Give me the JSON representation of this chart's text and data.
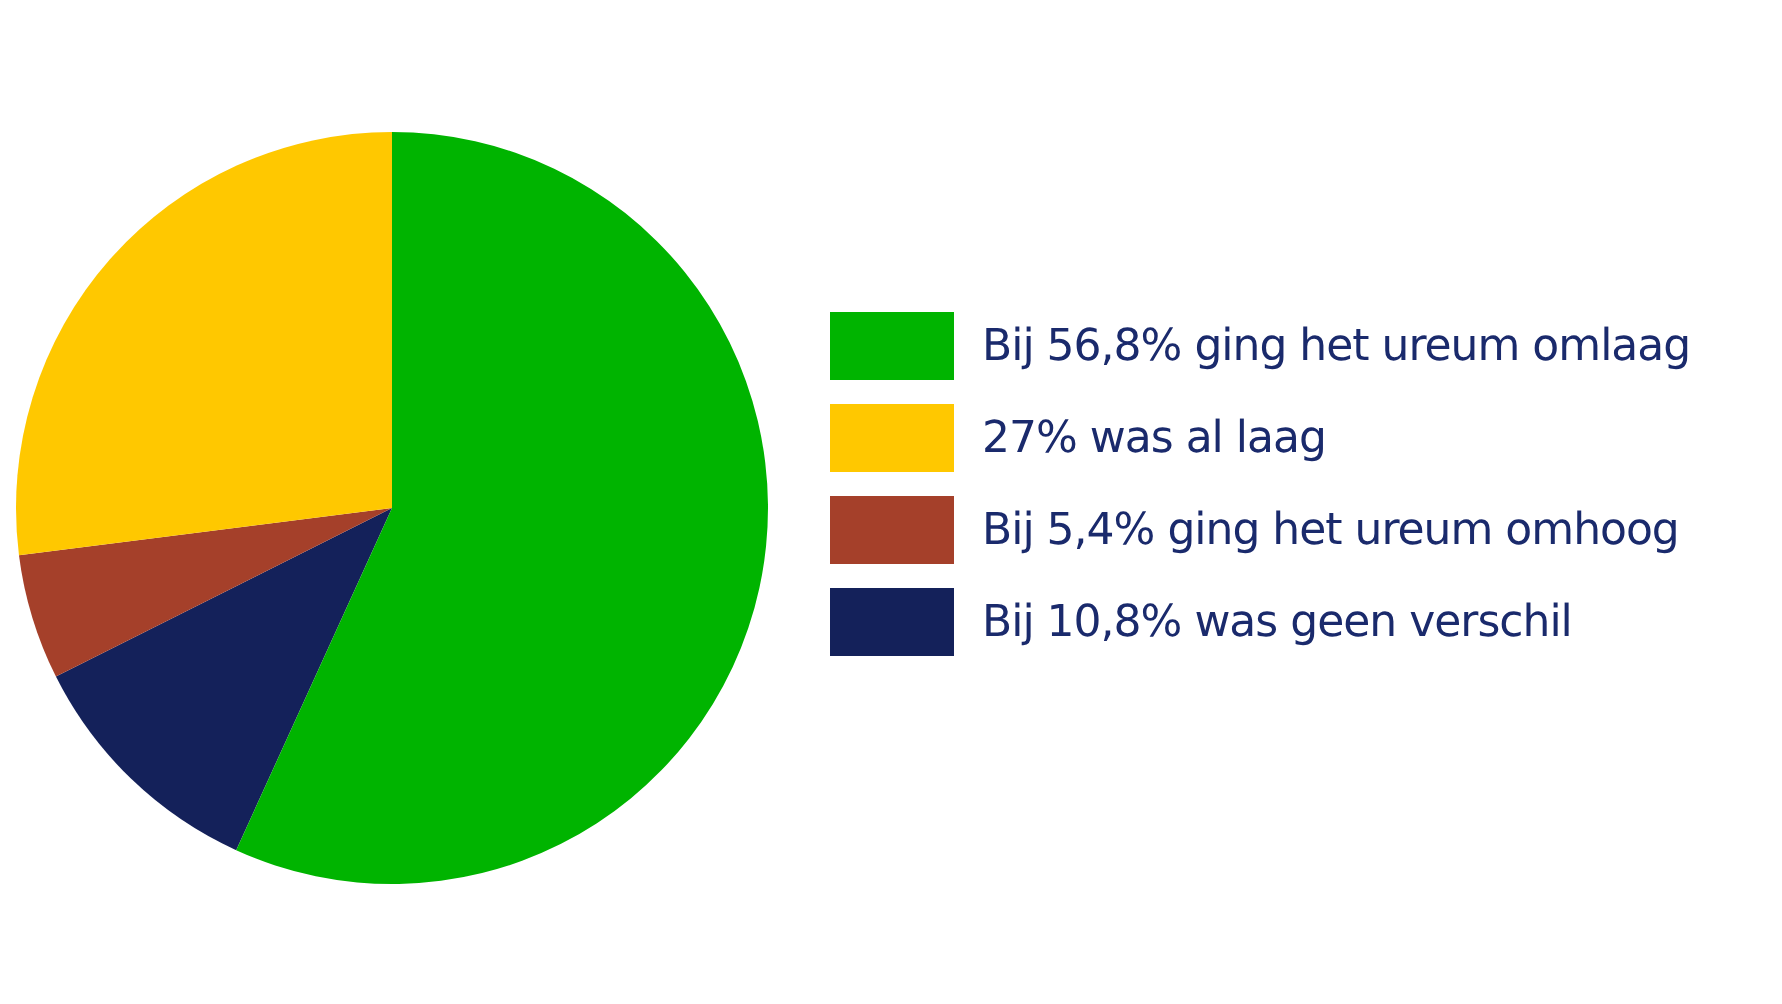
{
  "chart_data": {
    "type": "pie",
    "categories": [
      "Bij 56,8% ging het ureum omlaag",
      "27% was al laag",
      "Bij 5,4% ging het ureum omhoog",
      "Bij 10,8% was geen verschil"
    ],
    "values": [
      56.8,
      27,
      5.4,
      10.8
    ],
    "colors": [
      "#00b400",
      "#ffc800",
      "#a5402a",
      "#14215a"
    ],
    "legend": "right"
  }
}
